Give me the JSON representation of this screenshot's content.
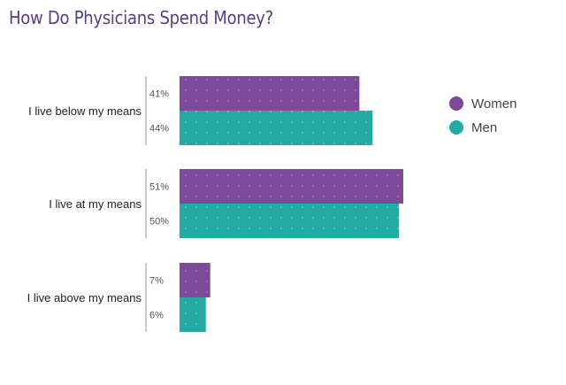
{
  "title": "How Do Physicians Spend Money?",
  "colors": {
    "women": "#7d4a9a",
    "men": "#24a9a5",
    "axis": "#c9ccd1",
    "title": "#5b3b86"
  },
  "chart_data": {
    "type": "bar",
    "orientation": "horizontal",
    "title": "How Do Physicians Spend Money?",
    "categories": [
      "I live below my means",
      "I live at my means",
      "I live above my means"
    ],
    "series": [
      {
        "name": "Women",
        "values": [
          41,
          51,
          7
        ],
        "value_labels": [
          "41%",
          "51%",
          "7%"
        ]
      },
      {
        "name": "Men",
        "values": [
          44,
          50,
          6
        ],
        "value_labels": [
          "44%",
          "50%",
          "6%"
        ]
      }
    ],
    "unit": "%",
    "xlim": [
      0,
      51
    ],
    "grid": false,
    "legend_position": "top-right"
  }
}
